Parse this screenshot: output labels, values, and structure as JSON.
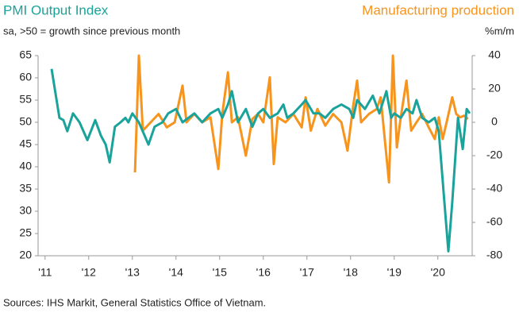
{
  "chart_data": {
    "type": "line",
    "subtitle": "sa, >50 = growth since previous month",
    "y2label": "%m/m",
    "source": "Sources: IHS Markit, General Statistics Office of Vietnam.",
    "xlim": [
      2010.84,
      2020.75
    ],
    "xticks": [
      {
        "value": 2011,
        "label": "'11"
      },
      {
        "value": 2012,
        "label": "'12"
      },
      {
        "value": 2013,
        "label": "'13"
      },
      {
        "value": 2014,
        "label": "'14"
      },
      {
        "value": 2015,
        "label": "'15"
      },
      {
        "value": 2016,
        "label": "'16"
      },
      {
        "value": 2017,
        "label": "'17"
      },
      {
        "value": 2018,
        "label": "'18"
      },
      {
        "value": 2019,
        "label": "'19"
      },
      {
        "value": 2020,
        "label": "'20"
      }
    ],
    "ylim": [
      20,
      65
    ],
    "yticks": [
      20,
      25,
      30,
      35,
      40,
      45,
      50,
      55,
      60,
      65
    ],
    "y2lim": [
      -80,
      40
    ],
    "y2ticks": [
      -80,
      -60,
      -40,
      -20,
      0,
      20,
      40
    ],
    "series": [
      {
        "name": "PMI Output Index",
        "color": "#1aa39a",
        "x": [
          2011.15,
          2011.33,
          2011.42,
          2011.51,
          2011.64,
          2011.79,
          2011.97,
          2012.15,
          2012.28,
          2012.39,
          2012.48,
          2012.6,
          2012.73,
          2012.84,
          2012.91,
          2013.0,
          2013.15,
          2013.37,
          2013.51,
          2013.69,
          2013.82,
          2014.0,
          2014.15,
          2014.42,
          2014.6,
          2014.79,
          2014.97,
          2015.06,
          2015.19,
          2015.28,
          2015.42,
          2015.6,
          2015.75,
          2015.88,
          2016.0,
          2016.15,
          2016.33,
          2016.46,
          2016.55,
          2016.69,
          2016.88,
          2016.97,
          2017.15,
          2017.29,
          2017.42,
          2017.6,
          2017.79,
          2017.97,
          2018.06,
          2018.15,
          2018.33,
          2018.51,
          2018.66,
          2018.82,
          2018.93,
          2019.0,
          2019.15,
          2019.28,
          2019.42,
          2019.51,
          2019.64,
          2019.79,
          2019.93,
          2020.02,
          2020.15,
          2020.24,
          2020.33,
          2020.46,
          2020.57,
          2020.66,
          2020.73
        ],
        "values": [
          62,
          51,
          50.5,
          48,
          52,
          50,
          46,
          50.5,
          47,
          45,
          41,
          49,
          50,
          51,
          50,
          52,
          50,
          45,
          49,
          50,
          52,
          53,
          50,
          52,
          50,
          52,
          53,
          51,
          54,
          57,
          50,
          53,
          49,
          52,
          53,
          51,
          52,
          54,
          51,
          52,
          54,
          55,
          52,
          52,
          51,
          53,
          54,
          53,
          51,
          55,
          53,
          56,
          52,
          57,
          51,
          52,
          51,
          53,
          52,
          55,
          51,
          50,
          51,
          48,
          32,
          21,
          32,
          51,
          44,
          53,
          52
        ]
      },
      {
        "name": "Manufacturing production",
        "color": "#f7941d",
        "axis": "y2",
        "x": [
          2013.06,
          2013.15,
          2013.24,
          2013.42,
          2013.6,
          2013.79,
          2013.97,
          2014.15,
          2014.24,
          2014.42,
          2014.6,
          2014.79,
          2014.97,
          2015.06,
          2015.19,
          2015.28,
          2015.42,
          2015.6,
          2015.75,
          2015.88,
          2016.0,
          2016.15,
          2016.24,
          2016.33,
          2016.51,
          2016.69,
          2016.88,
          2016.97,
          2017.09,
          2017.24,
          2017.42,
          2017.6,
          2017.79,
          2017.93,
          2018.06,
          2018.15,
          2018.24,
          2018.42,
          2018.6,
          2018.69,
          2018.88,
          2018.97,
          2019.06,
          2019.15,
          2019.28,
          2019.39,
          2019.51,
          2019.64,
          2019.79,
          2019.93,
          2020.02,
          2020.11,
          2020.2,
          2020.33,
          2020.42,
          2020.51,
          2020.6,
          2020.69
        ],
        "values": [
          -30,
          40,
          -5,
          0,
          5,
          -3,
          0,
          22,
          0,
          5,
          0,
          3,
          -28,
          5,
          30,
          0,
          3,
          -20,
          2,
          5,
          0,
          27,
          -25,
          3,
          0,
          5,
          -3,
          15,
          -5,
          8,
          -2,
          5,
          0,
          -17,
          10,
          25,
          0,
          5,
          8,
          15,
          -36,
          40,
          -15,
          3,
          25,
          -5,
          0,
          5,
          -3,
          -10,
          3,
          -10,
          0,
          15,
          5,
          3,
          4,
          2
        ]
      }
    ]
  }
}
